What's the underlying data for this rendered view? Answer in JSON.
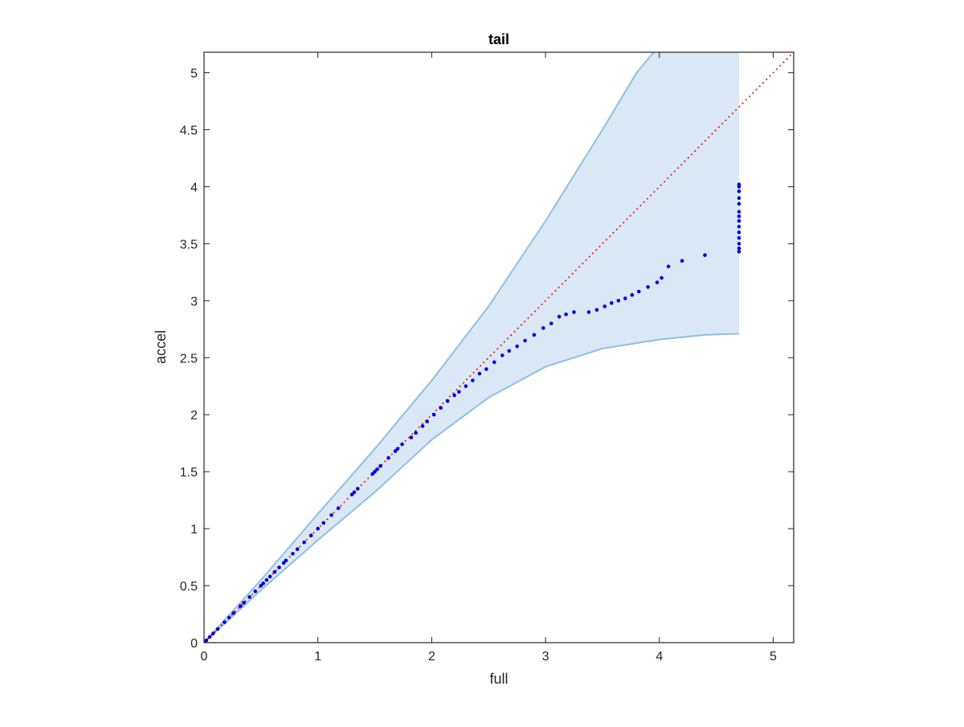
{
  "chart_data": {
    "type": "scatter",
    "title": "tail",
    "xlabel": "full",
    "ylabel": "accel",
    "xlim": [
      0,
      5.18
    ],
    "ylim": [
      0,
      5.18
    ],
    "xticks": [
      0,
      1,
      2,
      3,
      4,
      5
    ],
    "xtick_labels": [
      "0",
      "1",
      "2",
      "3",
      "4",
      "5"
    ],
    "yticks": [
      0,
      0.5,
      1,
      1.5,
      2,
      2.5,
      3,
      3.5,
      4,
      4.5,
      5
    ],
    "ytick_labels": [
      "0",
      "0.5",
      "1",
      "1.5",
      "2",
      "2.5",
      "3",
      "3.5",
      "4",
      "4.5",
      "5"
    ],
    "grid": false,
    "box": true,
    "band": {
      "color": "#d9e8f4",
      "edge_color": "#8fc0e0",
      "upper": [
        [
          0,
          0
        ],
        [
          0.5,
          0.55
        ],
        [
          1,
          1.13
        ],
        [
          1.5,
          1.7
        ],
        [
          2,
          2.3
        ],
        [
          2.5,
          2.95
        ],
        [
          3,
          3.7
        ],
        [
          3.5,
          4.5
        ],
        [
          3.8,
          5.0
        ],
        [
          3.95,
          5.18
        ],
        [
          4.7,
          5.18
        ]
      ],
      "lower": [
        [
          0,
          0
        ],
        [
          0.5,
          0.46
        ],
        [
          1,
          0.9
        ],
        [
          1.5,
          1.32
        ],
        [
          2,
          1.78
        ],
        [
          2.5,
          2.15
        ],
        [
          3,
          2.42
        ],
        [
          3.5,
          2.58
        ],
        [
          4,
          2.66
        ],
        [
          4.4,
          2.7
        ],
        [
          4.7,
          2.71
        ]
      ]
    },
    "reference_line": {
      "from": [
        0,
        0
      ],
      "to": [
        5.18,
        5.18
      ],
      "style": "dotted",
      "color": "#ff0000"
    },
    "series": [
      {
        "marker_color": "#0000dd",
        "x": [
          0.02,
          0.05,
          0.08,
          0.12,
          0.18,
          0.22,
          0.26,
          0.32,
          0.35,
          0.4,
          0.45,
          0.5,
          0.52,
          0.55,
          0.58,
          0.62,
          0.66,
          0.7,
          0.72,
          0.78,
          0.82,
          0.88,
          0.94,
          1.0,
          1.05,
          1.12,
          1.18,
          1.3,
          1.32,
          1.35,
          1.48,
          1.5,
          1.52,
          1.55,
          1.62,
          1.68,
          1.7,
          1.74,
          1.82,
          1.86,
          1.92,
          1.96,
          2.02,
          2.08,
          2.14,
          2.2,
          2.24,
          2.3,
          2.36,
          2.42,
          2.48,
          2.55,
          2.62,
          2.68,
          2.75,
          2.82,
          2.9,
          2.98,
          3.05,
          3.12,
          3.18,
          3.25,
          3.38,
          3.45,
          3.52,
          3.58,
          3.64,
          3.7,
          3.76,
          3.82,
          3.9,
          3.98,
          4.02,
          4.08,
          4.2,
          4.4
        ],
        "y": [
          0.02,
          0.05,
          0.08,
          0.12,
          0.18,
          0.22,
          0.26,
          0.32,
          0.35,
          0.4,
          0.45,
          0.5,
          0.52,
          0.55,
          0.58,
          0.62,
          0.66,
          0.7,
          0.72,
          0.78,
          0.82,
          0.88,
          0.94,
          1.0,
          1.05,
          1.12,
          1.18,
          1.3,
          1.32,
          1.35,
          1.48,
          1.5,
          1.52,
          1.55,
          1.62,
          1.68,
          1.7,
          1.74,
          1.8,
          1.84,
          1.9,
          1.94,
          2.0,
          2.06,
          2.12,
          2.17,
          2.2,
          2.25,
          2.3,
          2.36,
          2.4,
          2.46,
          2.52,
          2.56,
          2.6,
          2.65,
          2.7,
          2.76,
          2.8,
          2.86,
          2.88,
          2.9,
          2.9,
          2.92,
          2.95,
          2.98,
          3.0,
          3.02,
          3.05,
          3.08,
          3.12,
          3.16,
          3.2,
          3.3,
          3.35,
          3.4
        ]
      },
      {
        "marker_color": "#0000dd",
        "x": [
          4.7,
          4.7,
          4.7,
          4.7,
          4.7,
          4.7,
          4.7,
          4.7,
          4.7,
          4.7,
          4.7,
          4.7,
          4.7,
          4.7
        ],
        "y": [
          3.43,
          3.46,
          3.5,
          3.55,
          3.6,
          3.65,
          3.7,
          3.74,
          3.78,
          3.85,
          3.9,
          3.96,
          4.0,
          4.02
        ]
      }
    ]
  }
}
